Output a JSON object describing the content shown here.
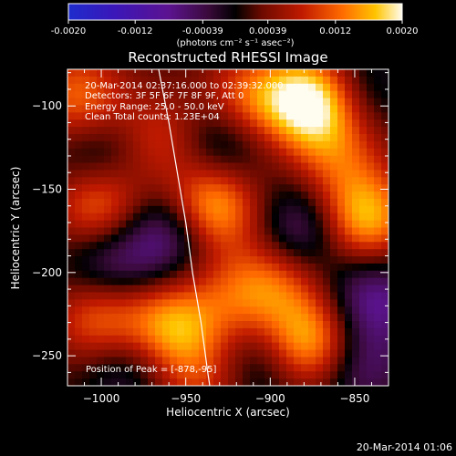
{
  "colorbar": {
    "tick_labels": [
      "-0.0020",
      "-0.0012",
      "-0.00039",
      "0.00039",
      "0.0012",
      "0.0020"
    ],
    "values": [
      -0.002,
      -0.0012,
      -0.00039,
      0.00039,
      0.0012,
      0.002
    ],
    "range": [
      -0.002,
      0.002
    ],
    "units": "(photons cm⁻² s⁻¹ asec⁻²)"
  },
  "chart_data": {
    "type": "heatmap",
    "title": "Reconstructed RHESSI Image",
    "xlabel": "Heliocentric X (arcsec)",
    "ylabel": "Heliocentric Y (arcsec)",
    "xlim": [
      -1020,
      -830
    ],
    "ylim": [
      -268,
      -78
    ],
    "x_ticks": [
      -1000,
      -950,
      -900,
      -850
    ],
    "y_ticks": [
      -250,
      -200,
      -150,
      -100
    ],
    "x_tick_labels": [
      "−1000",
      "−950",
      "−900",
      "−850"
    ],
    "y_tick_labels": [
      "−250",
      "−200",
      "−150",
      "−100"
    ],
    "annotations": [
      "20-Mar-2014 02:37:16.000 to 02:39:32.000",
      "Detectors: 3F 5F 6F 7F 8F 9F, Att 0",
      "Energy Range: 25.0 - 50.0 keV",
      "Clean     Total counts: 1.23E+04"
    ],
    "peak_text": "Position of Peak = [-878,-95]",
    "peak": [
      -878,
      -95
    ],
    "sources": [
      {
        "x": -875,
        "y": -97,
        "value": 0.002
      },
      {
        "x": -935,
        "y": -160,
        "value": 0.0017
      },
      {
        "x": -845,
        "y": -168,
        "value": 0.0016
      },
      {
        "x": -875,
        "y": -243,
        "value": 0.0017
      },
      {
        "x": -958,
        "y": -233,
        "value": 0.0014
      },
      {
        "x": -1000,
        "y": -160,
        "value": 0.0013
      },
      {
        "x": -1013,
        "y": -95,
        "value": 0.0011
      },
      {
        "x": -912,
        "y": -95,
        "value": 0.001
      },
      {
        "x": -1000,
        "y": -228,
        "value": 0.0012
      },
      {
        "x": -965,
        "y": -120,
        "value": 0.0008
      },
      {
        "x": -895,
        "y": -205,
        "value": 0.0009
      },
      {
        "x": -860,
        "y": -130,
        "value": 0.0008
      },
      {
        "x": -940,
        "y": -265,
        "value": 0.0007
      },
      {
        "x": -920,
        "y": -215,
        "value": 0.0007
      },
      {
        "x": -960,
        "y": -175,
        "value": -0.0011
      },
      {
        "x": -880,
        "y": -175,
        "value": -0.001
      },
      {
        "x": -995,
        "y": -195,
        "value": -0.0009
      },
      {
        "x": -840,
        "y": -215,
        "value": -0.001
      },
      {
        "x": -930,
        "y": -125,
        "value": -0.0008
      },
      {
        "x": -850,
        "y": -255,
        "value": -0.0009
      },
      {
        "x": -985,
        "y": -255,
        "value": -0.0007
      },
      {
        "x": -905,
        "y": -255,
        "value": -0.0006
      },
      {
        "x": -1000,
        "y": -130,
        "value": -0.0007
      },
      {
        "x": -850,
        "y": -90,
        "value": -0.0006
      }
    ],
    "limb_curve": [
      [
        -966,
        -78
      ],
      [
        -960,
        -110
      ],
      [
        -955,
        -140
      ],
      [
        -950,
        -170
      ],
      [
        -946,
        -200
      ],
      [
        -941,
        -230
      ],
      [
        -937,
        -260
      ],
      [
        -934,
        -280
      ]
    ]
  },
  "footer": {
    "timestamp": "20-Mar-2014 01:06"
  }
}
